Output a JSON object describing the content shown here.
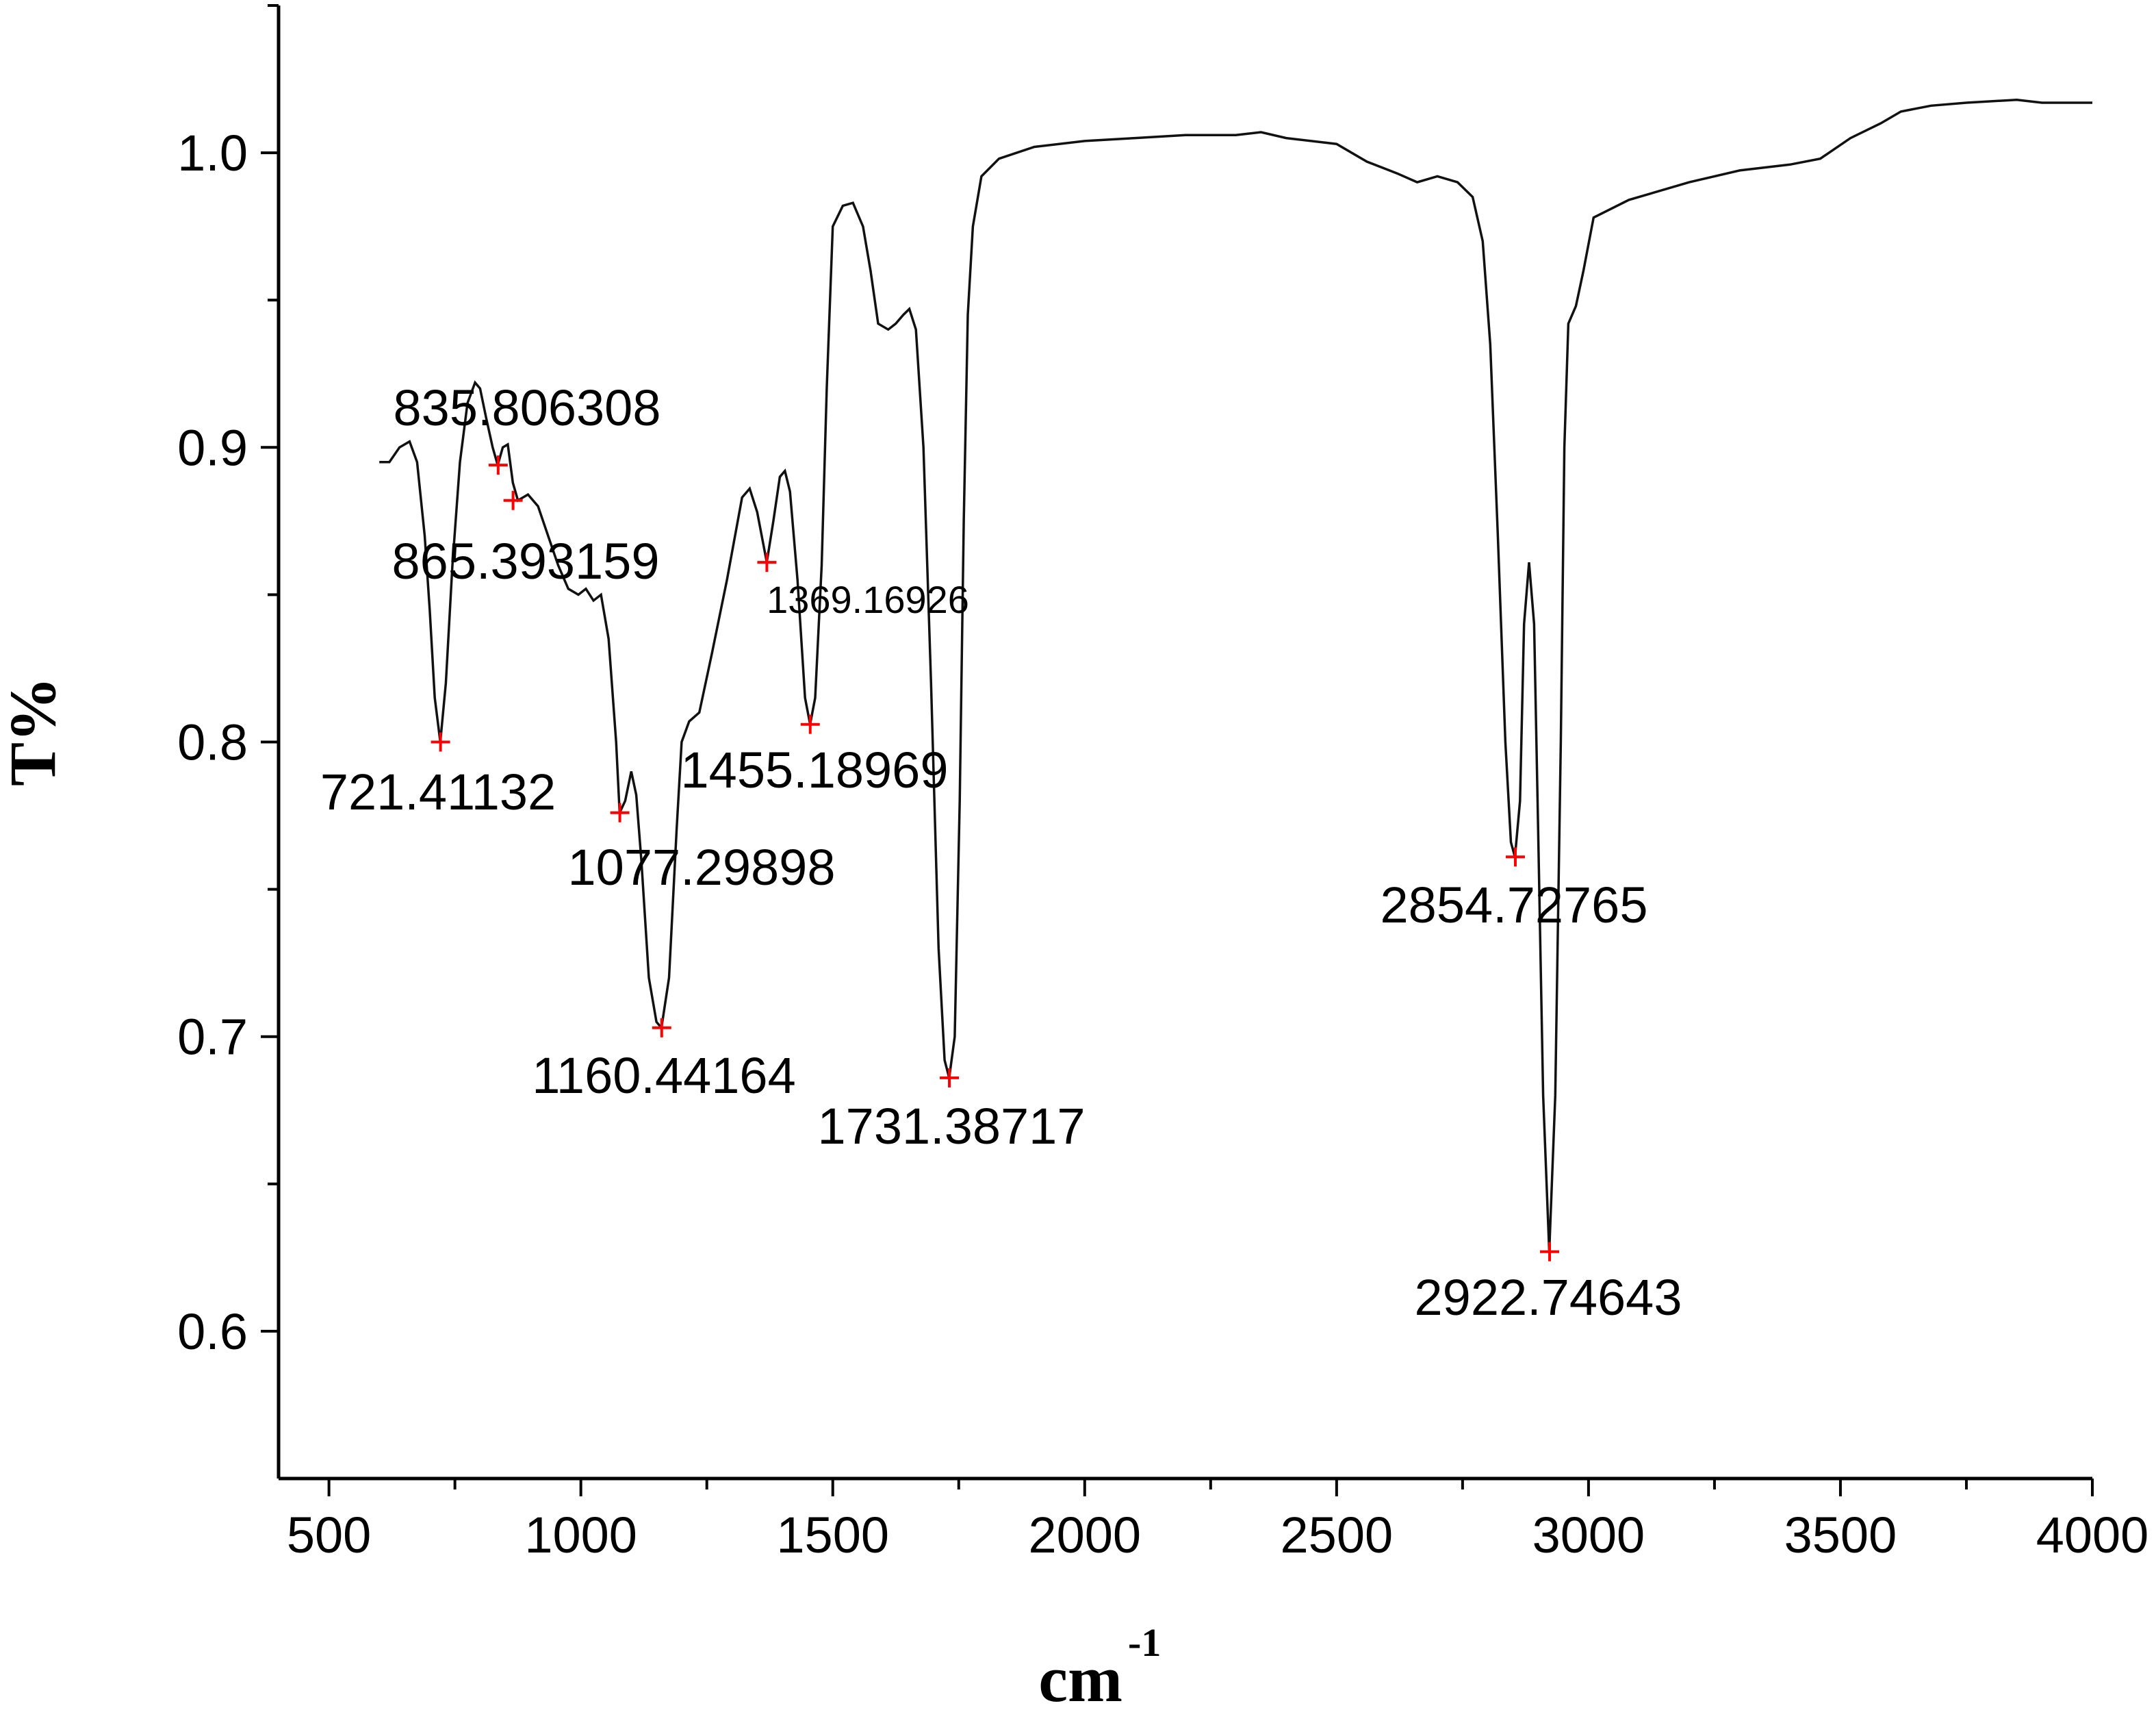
{
  "chart_data": {
    "type": "line",
    "title": "",
    "xlabel": "cm",
    "xlabel_superscript": "-1",
    "ylabel": "T%",
    "xlim": [
      400,
      4000
    ],
    "ylim": [
      0.55,
      1.05
    ],
    "grid": false,
    "x_ticks": [
      500,
      1000,
      1500,
      2000,
      2500,
      3000,
      3500,
      4000
    ],
    "x_tick_labels": [
      "500",
      "1000",
      "1500",
      "2000",
      "2500",
      "3000",
      "3500",
      "4000"
    ],
    "y_ticks": [
      0.6,
      0.7,
      0.8,
      0.9,
      1.0
    ],
    "y_tick_labels": [
      "0.6",
      "0.7",
      "0.8",
      "0.9",
      "1.0"
    ],
    "series": [
      {
        "points": [
          [
            600,
            0.895
          ],
          [
            620,
            0.895
          ],
          [
            640,
            0.9
          ],
          [
            660,
            0.902
          ],
          [
            675,
            0.895
          ],
          [
            690,
            0.87
          ],
          [
            700,
            0.845
          ],
          [
            710,
            0.815
          ],
          [
            721,
            0.8
          ],
          [
            732,
            0.82
          ],
          [
            745,
            0.86
          ],
          [
            760,
            0.895
          ],
          [
            775,
            0.915
          ],
          [
            790,
            0.922
          ],
          [
            800,
            0.92
          ],
          [
            812,
            0.91
          ],
          [
            825,
            0.9
          ],
          [
            835,
            0.894
          ],
          [
            845,
            0.9
          ],
          [
            855,
            0.901
          ],
          [
            865,
            0.888
          ],
          [
            875,
            0.882
          ],
          [
            895,
            0.884
          ],
          [
            915,
            0.88
          ],
          [
            935,
            0.87
          ],
          [
            955,
            0.86
          ],
          [
            975,
            0.852
          ],
          [
            995,
            0.85
          ],
          [
            1010,
            0.852
          ],
          [
            1025,
            0.848
          ],
          [
            1040,
            0.85
          ],
          [
            1055,
            0.835
          ],
          [
            1070,
            0.8
          ],
          [
            1077,
            0.776
          ],
          [
            1088,
            0.78
          ],
          [
            1100,
            0.79
          ],
          [
            1110,
            0.782
          ],
          [
            1120,
            0.76
          ],
          [
            1135,
            0.72
          ],
          [
            1150,
            0.705
          ],
          [
            1160,
            0.703
          ],
          [
            1175,
            0.72
          ],
          [
            1190,
            0.77
          ],
          [
            1200,
            0.8
          ],
          [
            1215,
            0.807
          ],
          [
            1235,
            0.81
          ],
          [
            1260,
            0.83
          ],
          [
            1290,
            0.855
          ],
          [
            1320,
            0.883
          ],
          [
            1335,
            0.886
          ],
          [
            1350,
            0.878
          ],
          [
            1369,
            0.861
          ],
          [
            1382,
            0.875
          ],
          [
            1395,
            0.89
          ],
          [
            1405,
            0.892
          ],
          [
            1415,
            0.885
          ],
          [
            1430,
            0.855
          ],
          [
            1445,
            0.815
          ],
          [
            1455,
            0.806
          ],
          [
            1465,
            0.815
          ],
          [
            1478,
            0.86
          ],
          [
            1488,
            0.92
          ],
          [
            1500,
            0.975
          ],
          [
            1520,
            0.982
          ],
          [
            1540,
            0.983
          ],
          [
            1560,
            0.975
          ],
          [
            1575,
            0.96
          ],
          [
            1590,
            0.942
          ],
          [
            1610,
            0.94
          ],
          [
            1625,
            0.942
          ],
          [
            1640,
            0.945
          ],
          [
            1652,
            0.947
          ],
          [
            1665,
            0.94
          ],
          [
            1680,
            0.9
          ],
          [
            1695,
            0.82
          ],
          [
            1710,
            0.73
          ],
          [
            1722,
            0.692
          ],
          [
            1731,
            0.686
          ],
          [
            1742,
            0.7
          ],
          [
            1752,
            0.78
          ],
          [
            1760,
            0.875
          ],
          [
            1768,
            0.945
          ],
          [
            1778,
            0.975
          ],
          [
            1795,
            0.992
          ],
          [
            1830,
            0.998
          ],
          [
            1900,
            1.002
          ],
          [
            2000,
            1.004
          ],
          [
            2100,
            1.005
          ],
          [
            2200,
            1.006
          ],
          [
            2300,
            1.006
          ],
          [
            2350,
            1.007
          ],
          [
            2400,
            1.005
          ],
          [
            2500,
            1.003
          ],
          [
            2560,
            0.997
          ],
          [
            2620,
            0.993
          ],
          [
            2660,
            0.99
          ],
          [
            2700,
            0.992
          ],
          [
            2740,
            0.99
          ],
          [
            2770,
            0.985
          ],
          [
            2790,
            0.97
          ],
          [
            2805,
            0.935
          ],
          [
            2820,
            0.87
          ],
          [
            2835,
            0.8
          ],
          [
            2846,
            0.766
          ],
          [
            2854,
            0.761
          ],
          [
            2864,
            0.78
          ],
          [
            2872,
            0.84
          ],
          [
            2882,
            0.861
          ],
          [
            2892,
            0.84
          ],
          [
            2900,
            0.77
          ],
          [
            2910,
            0.68
          ],
          [
            2922,
            0.627
          ],
          [
            2934,
            0.68
          ],
          [
            2945,
            0.8
          ],
          [
            2952,
            0.9
          ],
          [
            2960,
            0.942
          ],
          [
            2975,
            0.948
          ],
          [
            2990,
            0.96
          ],
          [
            3010,
            0.978
          ],
          [
            3080,
            0.984
          ],
          [
            3200,
            0.99
          ],
          [
            3300,
            0.994
          ],
          [
            3400,
            0.996
          ],
          [
            3460,
            0.998
          ],
          [
            3520,
            1.005
          ],
          [
            3580,
            1.01
          ],
          [
            3620,
            1.014
          ],
          [
            3680,
            1.016
          ],
          [
            3750,
            1.017
          ],
          [
            3850,
            1.018
          ],
          [
            3900,
            1.017
          ],
          [
            4000,
            1.017
          ]
        ]
      }
    ],
    "peaks": [
      {
        "x": 721.41132,
        "y": 0.8,
        "label": "721.41132",
        "size": 74
      },
      {
        "x": 835.806308,
        "y": 0.894,
        "label": "835.806308",
        "size": 74
      },
      {
        "x": 865.393159,
        "y": 0.882,
        "label": "865.393159",
        "size": 74
      },
      {
        "x": 1077.29898,
        "y": 0.776,
        "label": "1077.29898",
        "size": 74
      },
      {
        "x": 1160.44164,
        "y": 0.703,
        "label": "1160.44164",
        "size": 74
      },
      {
        "x": 1369.16926,
        "y": 0.861,
        "label": "1369.16926",
        "size": 56
      },
      {
        "x": 1455.18969,
        "y": 0.806,
        "label": "1455.18969",
        "size": 74
      },
      {
        "x": 1731.38717,
        "y": 0.686,
        "label": "1731.38717",
        "size": 74
      },
      {
        "x": 2854.72765,
        "y": 0.761,
        "label": "2854.72765",
        "size": 74
      },
      {
        "x": 2922.74643,
        "y": 0.627,
        "label": "2922.74643",
        "size": 74
      }
    ],
    "line_color": "#111111",
    "marker_color": "#ff0000"
  }
}
